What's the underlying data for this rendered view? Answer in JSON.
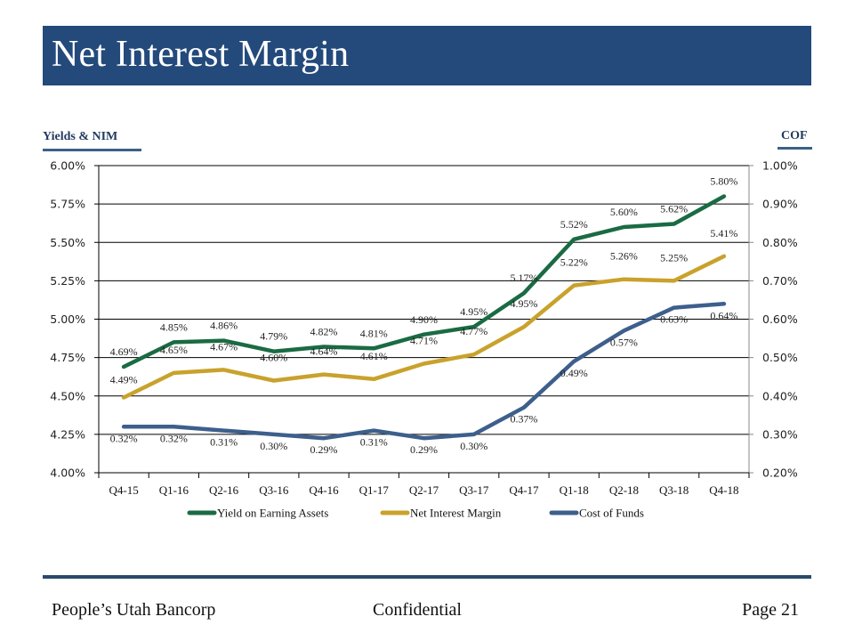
{
  "page": {
    "title": "Net Interest Margin",
    "footer": {
      "company": "People’s Utah Bancorp",
      "classification": "Confidential",
      "page_label": "Page 21"
    }
  },
  "chart_data": {
    "type": "line",
    "title": "",
    "left_axis_title": "Yields & NIM",
    "right_axis_title": "COF",
    "categories": [
      "Q4-15",
      "Q1-16",
      "Q2-16",
      "Q3-16",
      "Q4-16",
      "Q1-17",
      "Q2-17",
      "Q3-17",
      "Q4-17",
      "Q1-18",
      "Q2-18",
      "Q3-18",
      "Q4-18"
    ],
    "y_left": {
      "min": 4.0,
      "max": 6.0,
      "step": 0.25,
      "ticks": [
        "4.00%",
        "4.25%",
        "4.50%",
        "4.75%",
        "5.00%",
        "5.25%",
        "5.50%",
        "5.75%",
        "6.00%"
      ]
    },
    "y_right": {
      "min": 0.2,
      "max": 1.0,
      "step": 0.1,
      "ticks": [
        "0.20%",
        "0.30%",
        "0.40%",
        "0.50%",
        "0.60%",
        "0.70%",
        "0.80%",
        "0.90%",
        "1.00%"
      ]
    },
    "grid": true,
    "legend_position": "bottom",
    "series": [
      {
        "name": "Yield on Earning Assets",
        "axis": "left",
        "color": "#1a6b43",
        "values": [
          4.69,
          4.85,
          4.86,
          4.79,
          4.82,
          4.81,
          4.9,
          4.95,
          5.17,
          5.52,
          5.6,
          5.62,
          5.8
        ],
        "labels": [
          "4.69%",
          "4.85%",
          "4.86%",
          "4.79%",
          "4.82%",
          "4.81%",
          "4.90%",
          "4.95%",
          "5.17%",
          "5.52%",
          "5.60%",
          "5.62%",
          "5.80%"
        ]
      },
      {
        "name": "Net Interest Margin",
        "axis": "left",
        "color": "#c9a22c",
        "values": [
          4.49,
          4.65,
          4.67,
          4.6,
          4.64,
          4.61,
          4.71,
          4.77,
          4.95,
          5.22,
          5.26,
          5.25,
          5.41
        ],
        "labels": [
          "4.49%",
          "4.65%",
          "4.67%",
          "4.60%",
          "4.64%",
          "4.61%",
          "4.71%",
          "4.77%",
          "4.95%",
          "5.22%",
          "5.26%",
          "5.25%",
          "5.41%"
        ]
      },
      {
        "name": "Cost of Funds",
        "axis": "right",
        "color": "#3d5f8c",
        "values": [
          0.32,
          0.32,
          0.31,
          0.3,
          0.29,
          0.31,
          0.29,
          0.3,
          0.37,
          0.49,
          0.57,
          0.63,
          0.64
        ],
        "labels": [
          "0.32%",
          "0.32%",
          "0.31%",
          "0.30%",
          "0.29%",
          "0.31%",
          "0.29%",
          "0.30%",
          "0.37%",
          "0.49%",
          "0.57%",
          "0.63%",
          "0.64%"
        ]
      }
    ]
  }
}
